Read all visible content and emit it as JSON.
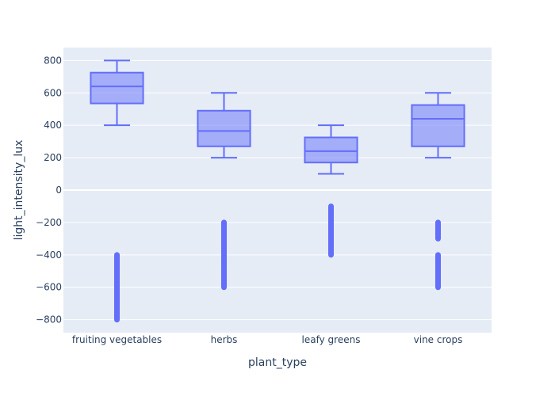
{
  "chart_data": {
    "type": "box",
    "xlabel": "plant_type",
    "ylabel": "light_intensity_lux",
    "categories": [
      "fruiting vegetables",
      "herbs",
      "leafy greens",
      "vine crops"
    ],
    "ylim": [
      -880,
      880
    ],
    "y_ticks": [
      -800,
      -600,
      -400,
      -200,
      0,
      200,
      400,
      600,
      800
    ],
    "grid": true,
    "colors": {
      "plot_bg": "#e5ecf6",
      "grid": "#ffffff",
      "box_line": "#636efa",
      "box_fill": "rgba(99,110,250,0.5)",
      "outlier": "#636efa",
      "text": "#2a3f5f"
    },
    "boxes": [
      {
        "category": "fruiting vegetables",
        "lowerfence": 400,
        "q1": 535,
        "median": 640,
        "q3": 725,
        "upperfence": 800
      },
      {
        "category": "herbs",
        "lowerfence": 200,
        "q1": 270,
        "median": 365,
        "q3": 490,
        "upperfence": 600
      },
      {
        "category": "leafy greens",
        "lowerfence": 100,
        "q1": 170,
        "median": 240,
        "q3": 325,
        "upperfence": 400
      },
      {
        "category": "vine crops",
        "lowerfence": 200,
        "q1": 270,
        "median": 440,
        "q3": 525,
        "upperfence": 600
      }
    ],
    "outliers": [
      {
        "category": "fruiting vegetables",
        "ranges": [
          [
            -800,
            -400
          ]
        ]
      },
      {
        "category": "herbs",
        "ranges": [
          [
            -600,
            -200
          ]
        ]
      },
      {
        "category": "leafy greens",
        "ranges": [
          [
            -400,
            -100
          ]
        ]
      },
      {
        "category": "vine crops",
        "ranges": [
          [
            -300,
            -200
          ],
          [
            -600,
            -400
          ]
        ]
      }
    ]
  }
}
